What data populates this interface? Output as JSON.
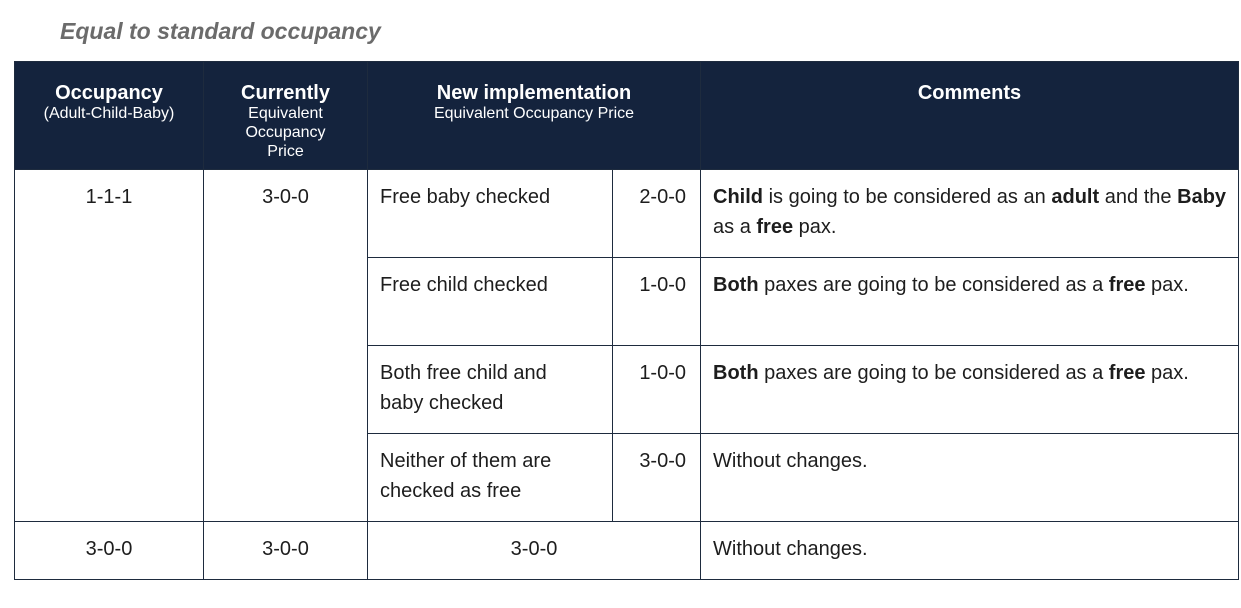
{
  "heading": "Equal to standard occupancy",
  "headers": {
    "occupancy": {
      "title": "Occupancy",
      "sub": "(Adult-Child-Baby)"
    },
    "currently": {
      "title": "Currently",
      "sub": [
        "Equivalent",
        "Occupancy",
        "Price"
      ]
    },
    "new_impl": {
      "title": "New implementation",
      "sub": "Equivalent Occupancy Price"
    },
    "comments": {
      "title": "Comments"
    }
  },
  "group1": {
    "occupancy": "1-1-1",
    "currently": "3-0-0",
    "rows": [
      {
        "case_lines": [
          "Free baby checked"
        ],
        "value": "2-0-0",
        "comment": [
          {
            "t": "Child",
            "b": true
          },
          {
            "t": " is going to be considered as an ",
            "b": false
          },
          {
            "t": "adult",
            "b": true
          },
          {
            "t": " and the ",
            "b": false
          },
          {
            "t": "Baby",
            "b": true
          },
          {
            "t": " as a ",
            "b": false
          },
          {
            "t": "free",
            "b": true
          },
          {
            "t": " pax.",
            "b": false
          }
        ]
      },
      {
        "case_lines": [
          "Free child checked"
        ],
        "value": "1-0-0",
        "comment": [
          {
            "t": "Both",
            "b": true
          },
          {
            "t": " paxes are going to be considered as a ",
            "b": false
          },
          {
            "t": "free",
            "b": true
          },
          {
            "t": " pax.",
            "b": false
          }
        ]
      },
      {
        "case_lines": [
          "Both free child and",
          "baby checked"
        ],
        "value": "1-0-0",
        "comment": [
          {
            "t": "Both",
            "b": true
          },
          {
            "t": " paxes are going to be considered as a ",
            "b": false
          },
          {
            "t": "free",
            "b": true
          },
          {
            "t": " pax.",
            "b": false
          }
        ]
      },
      {
        "case_lines": [
          "Neither of them are",
          "checked as free"
        ],
        "value": "3-0-0",
        "comment": [
          {
            "t": "Without changes.",
            "b": false
          }
        ]
      }
    ]
  },
  "row_last": {
    "occupancy": "3-0-0",
    "currently": "3-0-0",
    "new_value": "3-0-0",
    "comment": "Without changes."
  }
}
